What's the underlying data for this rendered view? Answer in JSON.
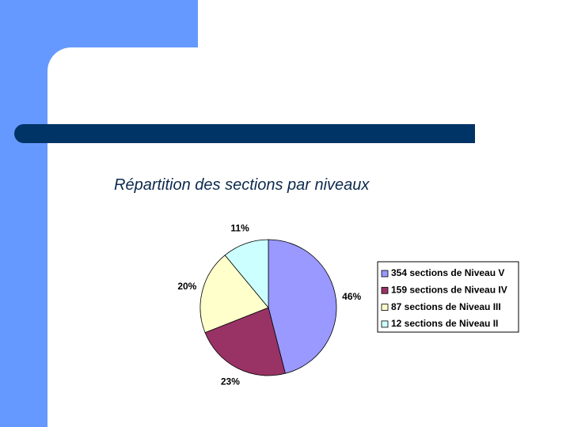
{
  "chart_data": {
    "type": "pie",
    "title": "Répartition des sections par niveaux",
    "categories": [
      "354 sections de Niveau V",
      "159 sections de Niveau IV",
      "87 sections de Niveau III",
      "12 sections de Niveau II"
    ],
    "values": [
      46,
      23,
      20,
      11
    ],
    "value_labels": [
      "46%",
      "23%",
      "20%",
      "11%"
    ],
    "colors": [
      "#9999ff",
      "#993366",
      "#ffffcc",
      "#ccffff"
    ],
    "legend": "right"
  }
}
